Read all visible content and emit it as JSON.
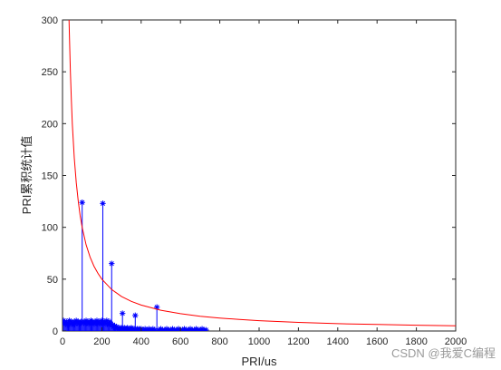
{
  "chart_data": {
    "type": "line",
    "xlabel": "PRI/us",
    "ylabel": "PRI累积统计值",
    "xlim": [
      0,
      2000
    ],
    "ylim": [
      0,
      300
    ],
    "xticks": [
      0,
      200,
      400,
      600,
      800,
      1000,
      1200,
      1400,
      1600,
      1800,
      2000
    ],
    "yticks": [
      0,
      50,
      100,
      150,
      200,
      250,
      300
    ],
    "grid": false,
    "legend": "none",
    "series": [
      {
        "kind": "stem",
        "color": "#0000ff",
        "marker": "asterisk",
        "x": [
          5,
          10,
          15,
          20,
          25,
          30,
          35,
          40,
          45,
          50,
          55,
          60,
          65,
          70,
          75,
          80,
          85,
          90,
          95,
          100,
          105,
          110,
          115,
          120,
          125,
          130,
          135,
          140,
          145,
          150,
          155,
          160,
          165,
          170,
          175,
          180,
          185,
          190,
          195,
          200,
          205,
          210,
          215,
          220,
          225,
          230,
          235,
          240,
          245,
          250,
          255,
          260,
          265,
          270,
          275,
          280,
          285,
          290,
          295,
          300,
          305,
          310,
          315,
          320,
          325,
          330,
          335,
          340,
          345,
          350,
          355,
          360,
          365,
          370,
          375,
          380,
          385,
          390,
          395,
          400,
          410,
          420,
          430,
          440,
          450,
          460,
          470,
          480,
          490,
          500,
          510,
          520,
          530,
          540,
          550,
          560,
          570,
          580,
          590,
          600,
          610,
          620,
          630,
          640,
          650,
          660,
          670,
          680,
          690,
          700,
          710,
          720,
          730
        ],
        "y": [
          10,
          8,
          7,
          9,
          6,
          8,
          10,
          7,
          9,
          8,
          6,
          9,
          7,
          10,
          8,
          9,
          7,
          8,
          9,
          124,
          8,
          9,
          7,
          10,
          8,
          9,
          7,
          8,
          10,
          9,
          8,
          7,
          9,
          8,
          10,
          7,
          9,
          8,
          7,
          10,
          123,
          8,
          9,
          7,
          10,
          8,
          6,
          9,
          7,
          65,
          6,
          4,
          5,
          3,
          4,
          3,
          2,
          3,
          2,
          3,
          17,
          2,
          3,
          1,
          2,
          3,
          2,
          1,
          2,
          3,
          2,
          1,
          2,
          15,
          1,
          2,
          1,
          2,
          1,
          2,
          1,
          2,
          1,
          2,
          1,
          2,
          1,
          23,
          1,
          2,
          1,
          1,
          2,
          1,
          1,
          2,
          1,
          1,
          2,
          1,
          1,
          2,
          1,
          1,
          2,
          1,
          1,
          2,
          1,
          1,
          2,
          1,
          1
        ]
      },
      {
        "kind": "curve",
        "color": "#ff0000",
        "function": "y = 10000 / x",
        "x": [
          33.3,
          35,
          40,
          45,
          50,
          60,
          70,
          80,
          90,
          100,
          120,
          140,
          160,
          180,
          200,
          250,
          300,
          350,
          400,
          500,
          600,
          700,
          800,
          900,
          1000,
          1200,
          1400,
          1600,
          1800,
          2000
        ],
        "y": [
          300,
          285.7,
          250,
          222.2,
          200,
          166.7,
          142.9,
          125,
          111.1,
          100,
          83.3,
          71.4,
          62.5,
          55.6,
          50,
          40,
          33.3,
          28.6,
          25,
          20,
          16.7,
          14.3,
          12.5,
          11.1,
          10,
          8.3,
          7.1,
          6.3,
          5.6,
          5
        ]
      }
    ]
  },
  "watermark": "CSDN @我爱C编程"
}
